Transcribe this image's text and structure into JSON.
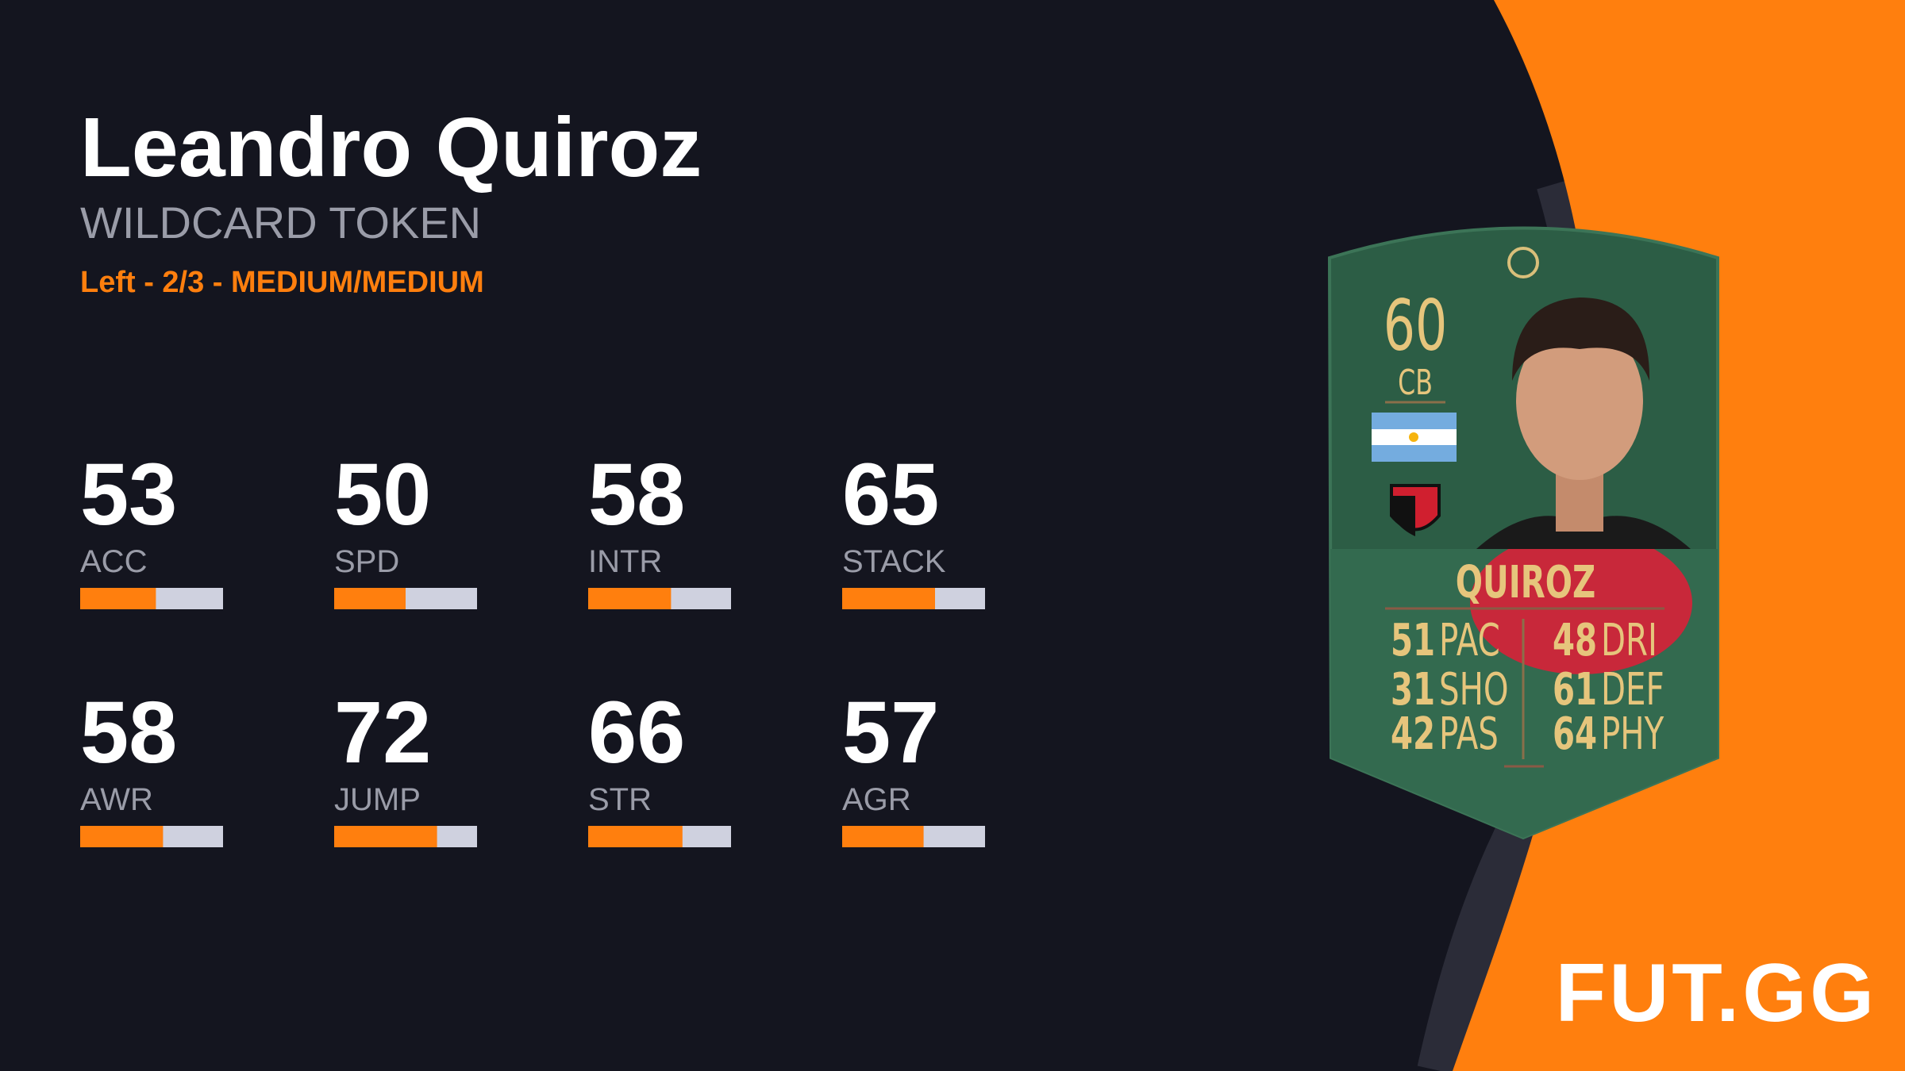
{
  "header": {
    "name": "Leandro Quiroz",
    "subtitle": "WILDCARD TOKEN",
    "info": "Left - 2/3 - MEDIUM/MEDIUM"
  },
  "stats": [
    {
      "value": 53,
      "label": "ACC"
    },
    {
      "value": 50,
      "label": "SPD"
    },
    {
      "value": 58,
      "label": "INTR"
    },
    {
      "value": 65,
      "label": "STACK"
    },
    {
      "value": 58,
      "label": "AWR"
    },
    {
      "value": 72,
      "label": "JUMP"
    },
    {
      "value": 66,
      "label": "STR"
    },
    {
      "value": 57,
      "label": "AGR"
    }
  ],
  "card": {
    "rating": 60,
    "position": "CB",
    "name": "QUIROZ",
    "stats": [
      {
        "value": 51,
        "label": "PAC"
      },
      {
        "value": 31,
        "label": "SHO"
      },
      {
        "value": 42,
        "label": "PAS"
      },
      {
        "value": 48,
        "label": "DRI"
      },
      {
        "value": 61,
        "label": "DEF"
      },
      {
        "value": 64,
        "label": "PHY"
      }
    ]
  },
  "logo": "FUT.GG"
}
